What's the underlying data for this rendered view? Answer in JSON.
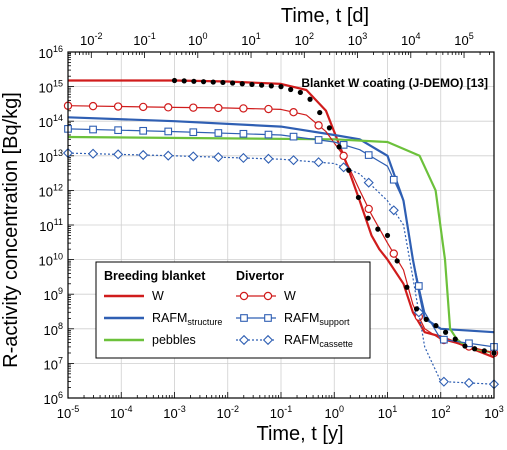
{
  "chart_data": {
    "type": "line",
    "title": "",
    "annotation": "Blanket W coating (J-DEMO) [13]",
    "xlabel_bottom": "Time, t [y]",
    "xlabel_top": "Time, t [d]",
    "ylabel": "R-activity concentration [Bq/kg]",
    "x_scale": "log",
    "y_scale": "log",
    "xlim": [
      1e-05,
      1000
    ],
    "ylim": [
      1000000.0,
      1e+16
    ],
    "grid": true,
    "x_ticks": [
      {
        "base": "10",
        "exp": "-5",
        "value": 1e-05
      },
      {
        "base": "10",
        "exp": "-4",
        "value": 0.0001
      },
      {
        "base": "10",
        "exp": "-3",
        "value": 0.001
      },
      {
        "base": "10",
        "exp": "-2",
        "value": 0.01
      },
      {
        "base": "10",
        "exp": "-1",
        "value": 0.1
      },
      {
        "base": "10",
        "exp": "0",
        "value": 1
      },
      {
        "base": "10",
        "exp": "1",
        "value": 10
      },
      {
        "base": "10",
        "exp": "2",
        "value": 100
      },
      {
        "base": "10",
        "exp": "3",
        "value": 1000
      }
    ],
    "x_top_ticks": [
      {
        "base": "10",
        "exp": "-2",
        "value": 0.01
      },
      {
        "base": "10",
        "exp": "-1",
        "value": 0.1
      },
      {
        "base": "10",
        "exp": "0",
        "value": 1
      },
      {
        "base": "10",
        "exp": "1",
        "value": 10
      },
      {
        "base": "10",
        "exp": "2",
        "value": 100
      },
      {
        "base": "10",
        "exp": "3",
        "value": 1000
      },
      {
        "base": "10",
        "exp": "4",
        "value": 10000
      },
      {
        "base": "10",
        "exp": "5",
        "value": 100000
      }
    ],
    "y_ticks": [
      {
        "base": "10",
        "exp": "6",
        "value": 1000000.0
      },
      {
        "base": "10",
        "exp": "7",
        "value": 10000000.0
      },
      {
        "base": "10",
        "exp": "8",
        "value": 100000000.0
      },
      {
        "base": "10",
        "exp": "9",
        "value": 1000000000.0
      },
      {
        "base": "10",
        "exp": "10",
        "value": 10000000000.0
      },
      {
        "base": "10",
        "exp": "11",
        "value": 100000000000.0
      },
      {
        "base": "10",
        "exp": "12",
        "value": 1000000000000.0
      },
      {
        "base": "10",
        "exp": "13",
        "value": 10000000000000.0
      },
      {
        "base": "10",
        "exp": "14",
        "value": 100000000000000.0
      },
      {
        "base": "10",
        "exp": "15",
        "value": 1000000000000000.0
      },
      {
        "base": "10",
        "exp": "16",
        "value": 1e+16
      }
    ],
    "legend": {
      "placement": "bottom-left",
      "group_breeding": "Breeding blanket",
      "group_divertor": "Divertor"
    },
    "series": [
      {
        "name": "W",
        "group": "Breeding blanket",
        "color": "#d01c1c",
        "style": "solid",
        "marker": "none",
        "points": [
          [
            1e-05,
            1500000000000000.0
          ],
          [
            0.001,
            1500000000000000.0
          ],
          [
            0.01,
            1400000000000000.0
          ],
          [
            0.1,
            1200000000000000.0
          ],
          [
            0.3,
            800000000000000.0
          ],
          [
            0.7,
            200000000000000.0
          ],
          [
            1.5,
            10000000000000.0
          ],
          [
            3,
            500000000000.0
          ],
          [
            5,
            50000000000.0
          ],
          [
            7,
            20000000000.0
          ],
          [
            10,
            10000000000.0
          ],
          [
            20,
            2000000000.0
          ],
          [
            30,
            300000000.0
          ],
          [
            50,
            80000000.0
          ],
          [
            100,
            60000000.0
          ],
          [
            1000,
            15000000.0
          ]
        ]
      },
      {
        "name": "RAFM",
        "name_sub": "structure",
        "group": "Breeding blanket",
        "color": "#2f5fb3",
        "style": "solid",
        "marker": "none",
        "points": [
          [
            1e-05,
            130000000000000.0
          ],
          [
            0.001,
            100000000000000.0
          ],
          [
            0.1,
            70000000000000.0
          ],
          [
            1,
            40000000000000.0
          ],
          [
            3,
            30000000000000.0
          ],
          [
            10,
            10000000000000.0
          ],
          [
            20,
            500000000000.0
          ],
          [
            30,
            10000000000.0
          ],
          [
            40,
            1000000000.0
          ],
          [
            50,
            200000000.0
          ],
          [
            100,
            100000000.0
          ],
          [
            1000,
            80000000.0
          ]
        ]
      },
      {
        "name": "pebbles",
        "group": "Breeding blanket",
        "color": "#6cc13b",
        "style": "solid",
        "marker": "none",
        "points": [
          [
            1e-05,
            35000000000000.0
          ],
          [
            1,
            30000000000000.0
          ],
          [
            10,
            25000000000000.0
          ],
          [
            40,
            10000000000000.0
          ],
          [
            80,
            1000000000000.0
          ],
          [
            120,
            10000000000.0
          ],
          [
            150,
            100000000.0
          ],
          [
            200,
            50000000.0
          ],
          [
            300,
            30000000.0
          ],
          [
            1000,
            20000000.0
          ]
        ]
      },
      {
        "name": "W",
        "group": "Divertor",
        "color": "#d01c1c",
        "style": "solid",
        "marker": "circle",
        "points": [
          [
            1e-05,
            280000000000000.0
          ],
          [
            0.001,
            250000000000000.0
          ],
          [
            0.01,
            240000000000000.0
          ],
          [
            0.1,
            220000000000000.0
          ],
          [
            0.3,
            150000000000000.0
          ],
          [
            0.7,
            50000000000000.0
          ],
          [
            1.5,
            10000000000000.0
          ],
          [
            3,
            1000000000000.0
          ],
          [
            5,
            200000000000.0
          ],
          [
            10,
            30000000000.0
          ],
          [
            20,
            5000000000.0
          ],
          [
            30,
            500000000.0
          ],
          [
            50,
            100000000.0
          ],
          [
            100,
            50000000.0
          ],
          [
            1000,
            20000000.0
          ]
        ]
      },
      {
        "name": "RAFM",
        "name_sub": "support",
        "group": "Divertor",
        "color": "#2f5fb3",
        "style": "solid",
        "marker": "square",
        "points": [
          [
            1e-05,
            60000000000000.0
          ],
          [
            0.001,
            50000000000000.0
          ],
          [
            0.1,
            40000000000000.0
          ],
          [
            1,
            25000000000000.0
          ],
          [
            3,
            15000000000000.0
          ],
          [
            10,
            5000000000000.0
          ],
          [
            20,
            500000000000.0
          ],
          [
            30,
            10000000000.0
          ],
          [
            50,
            300000000.0
          ],
          [
            100,
            50000000.0
          ],
          [
            1000,
            30000000.0
          ]
        ]
      },
      {
        "name": "RAFM",
        "name_sub": "cassette",
        "group": "Divertor",
        "color": "#2f5fb3",
        "style": "dotted",
        "marker": "diamond",
        "points": [
          [
            1e-05,
            12000000000000.0
          ],
          [
            0.001,
            10000000000000.0
          ],
          [
            0.1,
            8000000000000.0
          ],
          [
            1,
            6000000000000.0
          ],
          [
            3,
            3000000000000.0
          ],
          [
            10,
            500000000000.0
          ],
          [
            20,
            100000000000.0
          ],
          [
            30,
            3000000000.0
          ],
          [
            50,
            30000000.0
          ],
          [
            100,
            3000000.0
          ],
          [
            1000,
            2500000.0
          ]
        ]
      },
      {
        "name": "",
        "group": "",
        "color": "#000000",
        "style": "dots",
        "marker": "dot",
        "points": [
          [
            0.001,
            1500000000000000.0
          ],
          [
            0.01,
            1300000000000000.0
          ],
          [
            0.1,
            1000000000000000.0
          ],
          [
            0.3,
            600000000000000.0
          ],
          [
            0.7,
            100000000000000.0
          ],
          [
            1.5,
            10000000000000.0
          ],
          [
            3,
            500000000000.0
          ],
          [
            5,
            100000000000.0
          ],
          [
            10,
            50000000000.0
          ],
          [
            20,
            3000000000.0
          ],
          [
            30,
            500000000.0
          ],
          [
            50,
            200000000.0
          ],
          [
            100,
            100000000.0
          ],
          [
            300,
            30000000.0
          ],
          [
            1000,
            20000000.0
          ]
        ]
      }
    ]
  }
}
